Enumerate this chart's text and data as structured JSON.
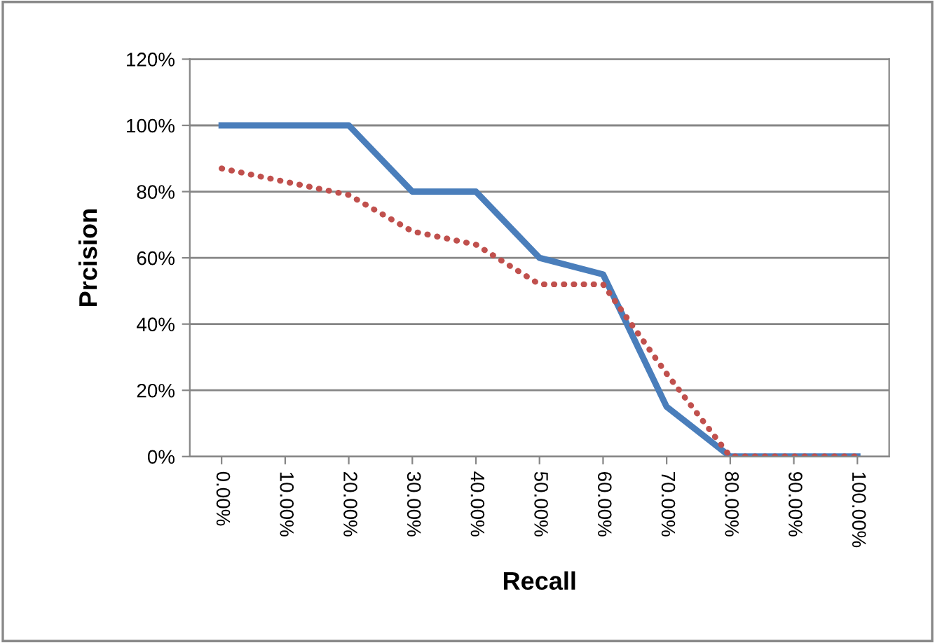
{
  "chart_data": {
    "type": "line",
    "xlabel": "Recall",
    "ylabel": "Prcision",
    "categories": [
      "0.00%",
      "10.00%",
      "20.00%",
      "30.00%",
      "40.00%",
      "50.00%",
      "60.00%",
      "70.00%",
      "80.00%",
      "90.00%",
      "100.00%"
    ],
    "series": [
      {
        "color": "#4a7ebb",
        "line_style": "solid",
        "values": [
          100,
          100,
          100,
          80,
          80,
          60,
          55,
          15,
          0,
          0,
          0
        ]
      },
      {
        "color": "#c0504d",
        "line_style": "dotted",
        "values": [
          87,
          83,
          79,
          68,
          64,
          52,
          52,
          25,
          0,
          0,
          0
        ]
      }
    ],
    "ylim": [
      0,
      120
    ],
    "yticks": [
      {
        "value": 0,
        "label": "0%"
      },
      {
        "value": 20,
        "label": "20%"
      },
      {
        "value": 40,
        "label": "40%"
      },
      {
        "value": 60,
        "label": "60%"
      },
      {
        "value": 80,
        "label": "80%"
      },
      {
        "value": 100,
        "label": "100%"
      },
      {
        "value": 120,
        "label": "120%"
      }
    ],
    "grid": "y",
    "marker": "none"
  }
}
